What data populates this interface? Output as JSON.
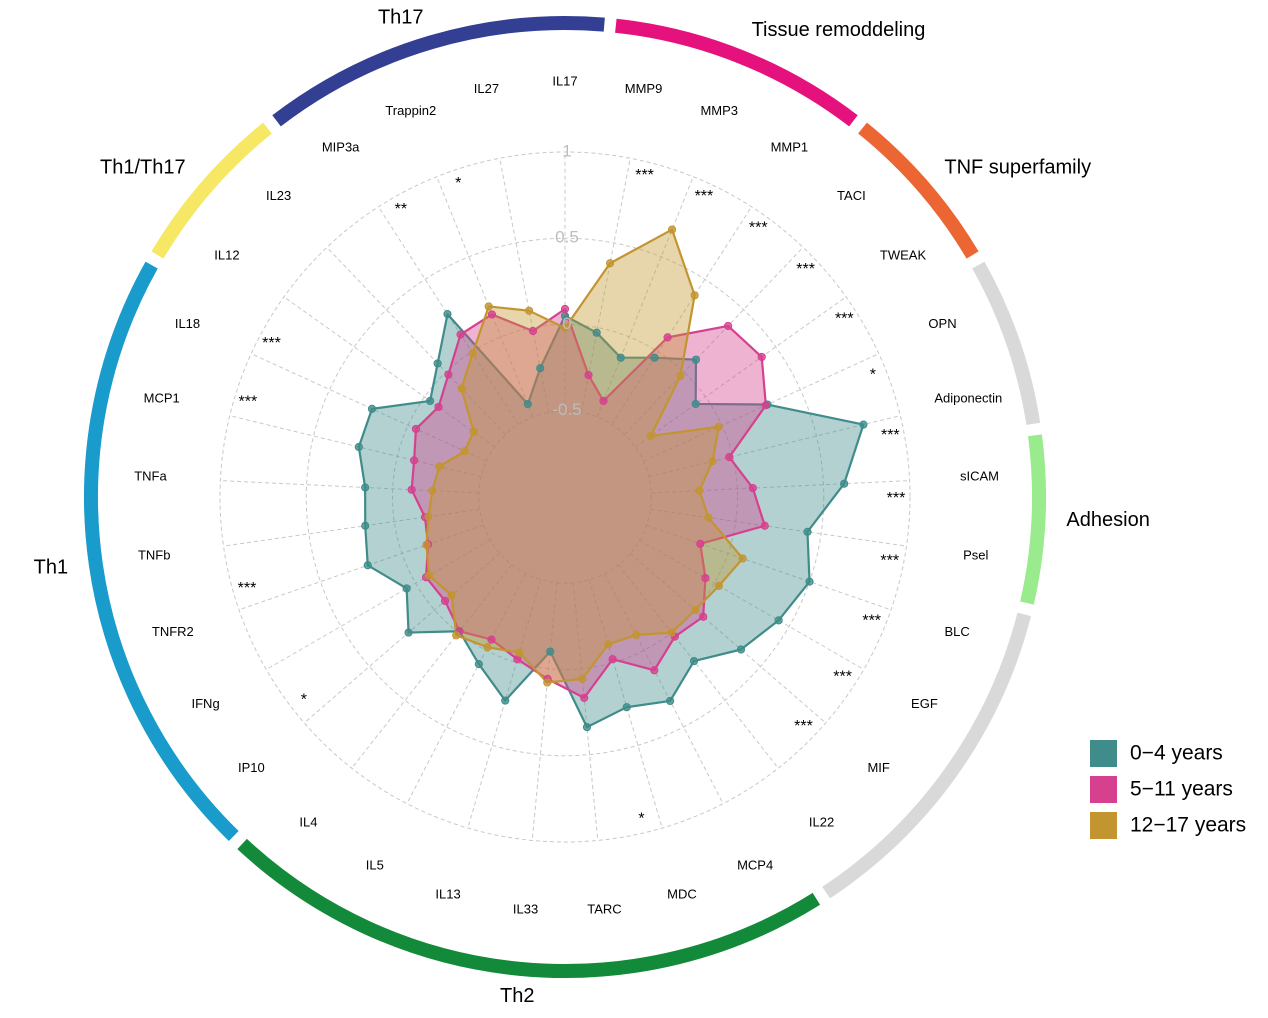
{
  "chart_data": {
    "type": "radar",
    "categories": [
      "IL17",
      "MMP9",
      "MMP3",
      "MMP1",
      "TACI",
      "TWEAK",
      "OPN",
      "Adiponectin",
      "sICAM",
      "Psel",
      "BLC",
      "EGF",
      "MIF",
      "IL22",
      "MCP4",
      "MDC",
      "TARC",
      "IL33",
      "IL13",
      "IL5",
      "IL4",
      "IP10",
      "IFNg",
      "TNFR2",
      "TNFb",
      "TNFa",
      "MCP1",
      "IL18",
      "IL12",
      "IL23",
      "MIP3a",
      "Trappin2",
      "IL27"
    ],
    "series": [
      {
        "name": "0−4 years",
        "color": "#3f8c8a",
        "values": [
          0.05,
          -0.03,
          -0.13,
          -0.04,
          0.1,
          -0.07,
          0.29,
          0.78,
          0.62,
          0.42,
          0.5,
          0.43,
          0.35,
          0.21,
          0.33,
          0.27,
          0.34,
          -0.1,
          0.23,
          0.09,
          -0.01,
          0.2,
          0.06,
          0.21,
          0.17,
          0.16,
          0.23,
          0.23,
          -0.04,
          0.07,
          0.26,
          -0.42,
          -0.24
        ]
      },
      {
        "name": "5−11 years",
        "color": "#d6408e",
        "values": [
          0.09,
          -0.28,
          -0.4,
          0.1,
          0.37,
          0.4,
          0.28,
          -0.02,
          0.09,
          0.17,
          -0.17,
          -0.06,
          0.06,
          0.03,
          0.13,
          -0.02,
          0.17,
          0.06,
          -0.02,
          -0.07,
          -0.01,
          -0.08,
          -0.07,
          -0.16,
          -0.18,
          -0.11,
          -0.1,
          -0.05,
          -0.1,
          -0.02,
          0.12,
          0.14,
          -0.02
        ]
      },
      {
        "name": "12−17 years",
        "color": "#c39530",
        "values": [
          -0.02,
          0.38,
          0.67,
          0.39,
          -0.03,
          -0.39,
          -0.02,
          -0.12,
          -0.22,
          -0.16,
          0.09,
          0.03,
          0.0,
          0.0,
          -0.1,
          -0.11,
          0.06,
          0.08,
          -0.06,
          -0.02,
          0.02,
          -0.13,
          -0.09,
          -0.15,
          -0.2,
          -0.23,
          -0.25,
          -0.36,
          -0.35,
          -0.13,
          -0.01,
          0.19,
          0.1
        ]
      }
    ],
    "significance": [
      null,
      "***",
      "***",
      "***",
      "***",
      "***",
      "*",
      "***",
      "***",
      "***",
      "***",
      "***",
      "***",
      null,
      null,
      "*",
      null,
      null,
      null,
      null,
      null,
      "*",
      null,
      "***",
      null,
      null,
      "***",
      "***",
      null,
      null,
      "**",
      "*",
      null
    ],
    "groups": [
      {
        "name": "Th17",
        "color": "#323f93",
        "start": 30,
        "end": 0
      },
      {
        "name": "Tissue remoddeling",
        "color": "#e5127d",
        "start": 1,
        "end": 3
      },
      {
        "name": "TNF superfamily",
        "color": "#ec6634",
        "start": 4,
        "end": 5
      },
      {
        "color": "#d9d9d9",
        "start": 6,
        "end": 7
      },
      {
        "name": "Adhesion",
        "color": "#9aea8e",
        "start": 8,
        "end": 9
      },
      {
        "color": "#d9d9d9",
        "start": 10,
        "end": 13
      },
      {
        "name": "Th2",
        "color": "#138a3a",
        "start": 14,
        "end": 20
      },
      {
        "name": "Th1",
        "color": "#199bcc",
        "start": 21,
        "end": 27
      },
      {
        "name": "Th1/Th17",
        "color": "#f6e864",
        "start": 28,
        "end": 29
      }
    ],
    "ylim": [
      -1,
      1
    ],
    "yticks": [
      -0.5,
      0,
      0.5,
      1
    ],
    "grid": true,
    "legend": "right"
  }
}
